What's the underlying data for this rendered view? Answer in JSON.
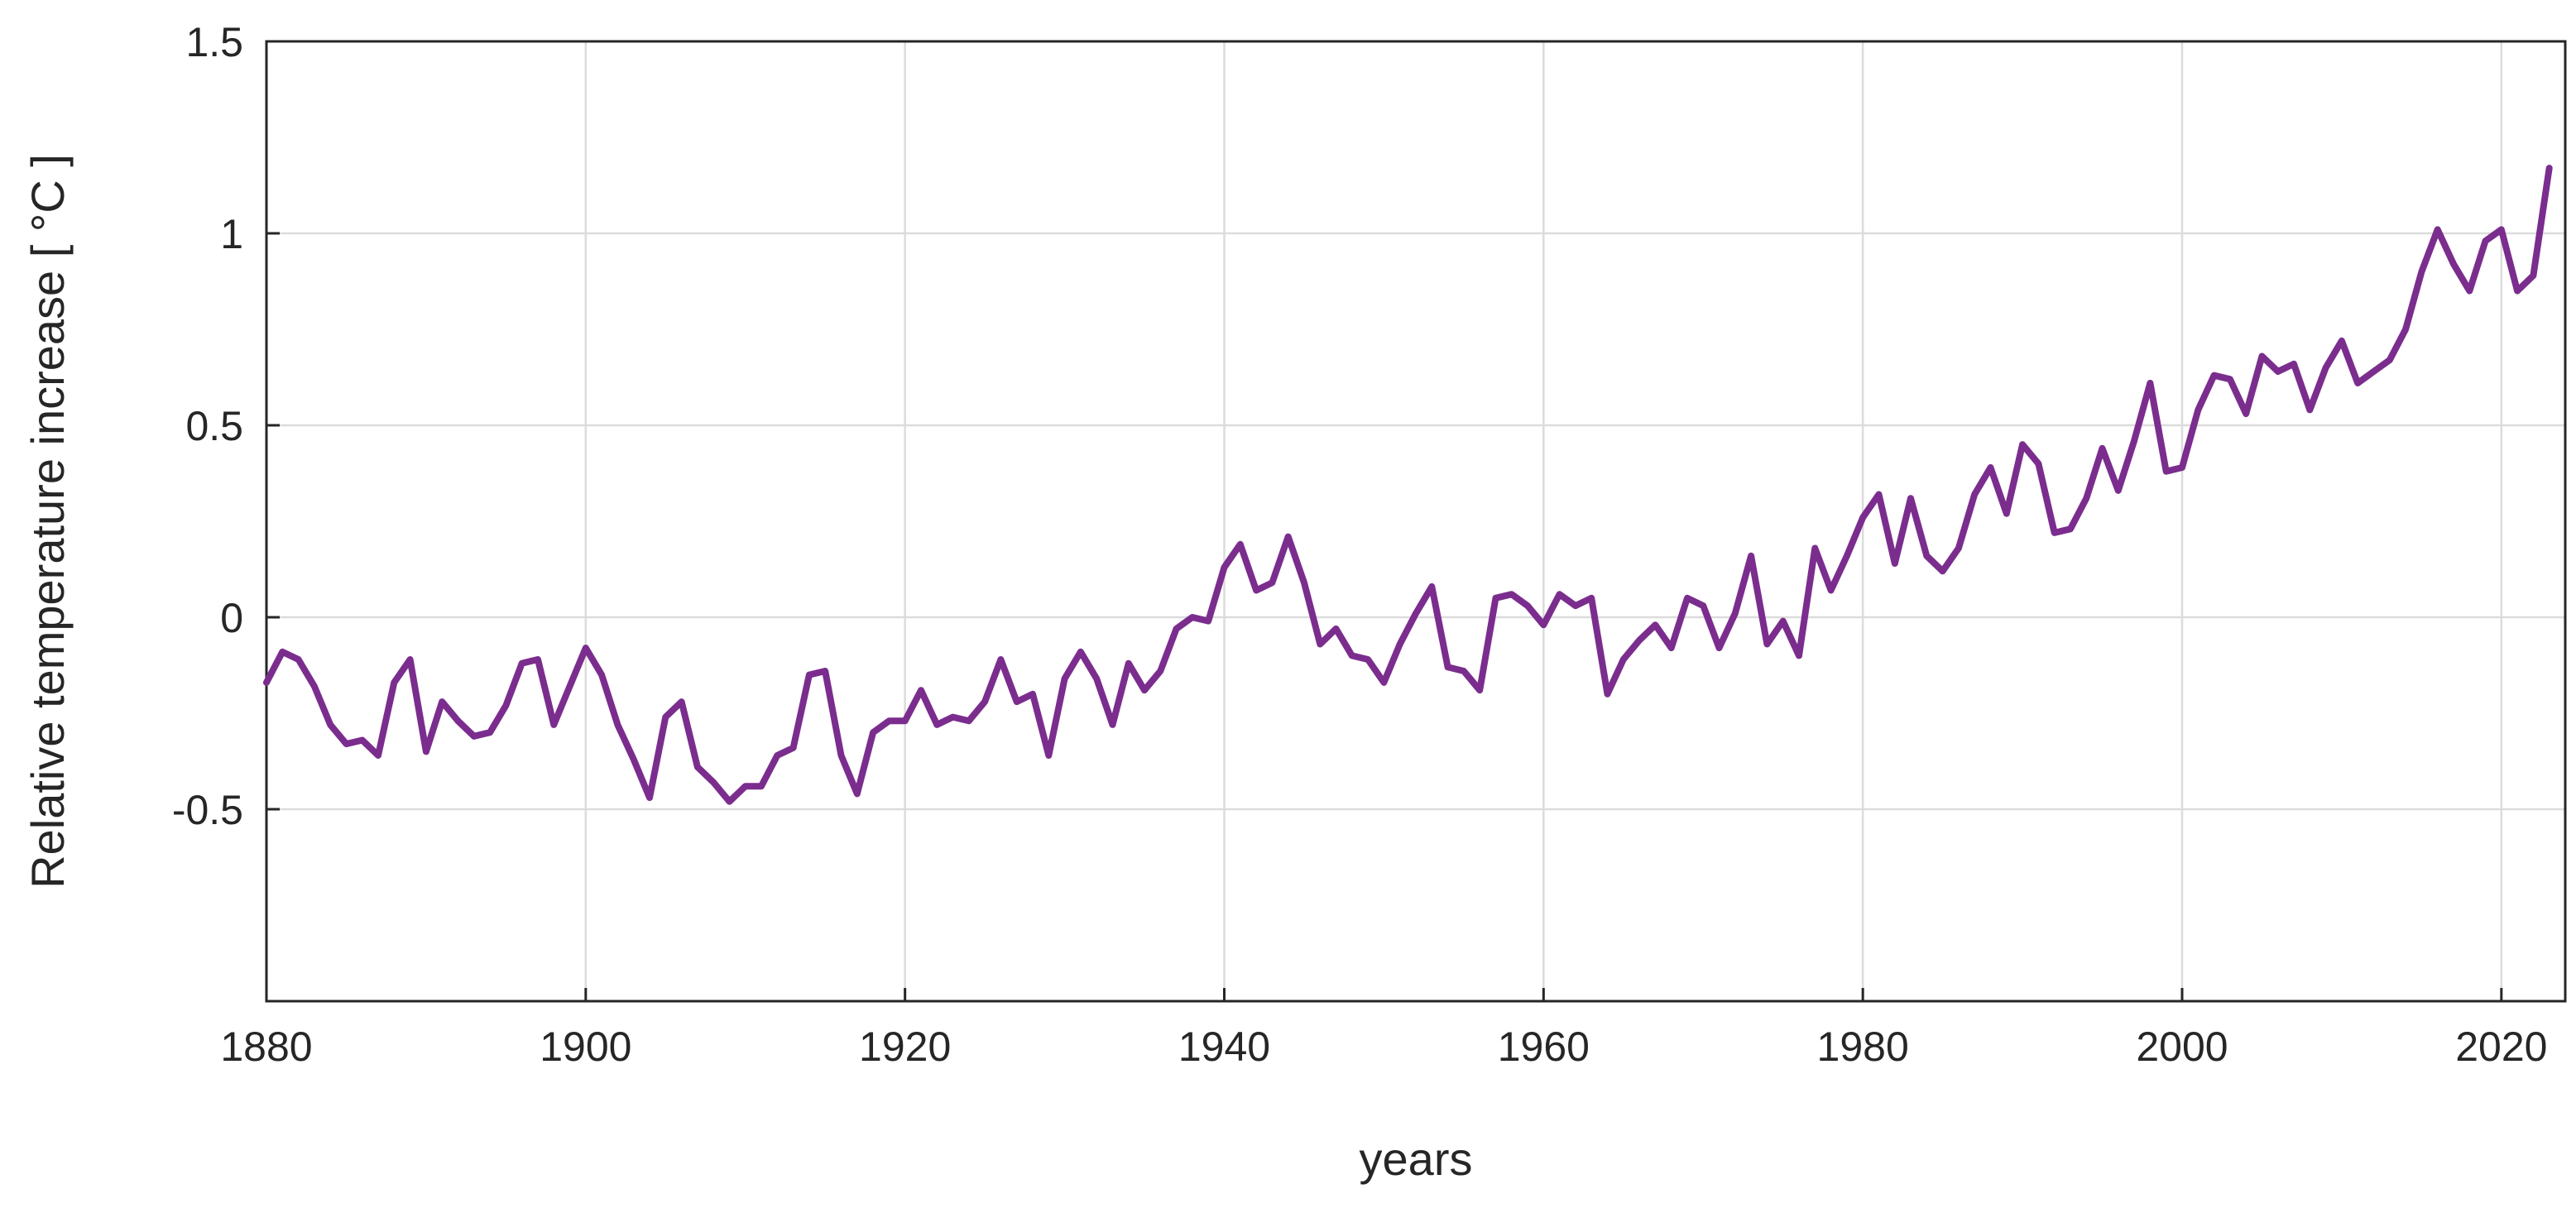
{
  "chart_data": {
    "type": "line",
    "title": "",
    "xlabel": "years",
    "ylabel": "Relative temperature increase [ °C ]",
    "xlim": [
      1880,
      2024
    ],
    "ylim": [
      -1,
      1.5
    ],
    "xticks": [
      1880,
      1900,
      1920,
      1940,
      1960,
      1980,
      2000,
      2020
    ],
    "xtick_labels": [
      "1880",
      "1900",
      "1920",
      "1940",
      "1960",
      "1980",
      "2000",
      "2020"
    ],
    "yticks": [
      1.5,
      1,
      0.5,
      0,
      -0.5
    ],
    "ytick_labels": [
      "1.5",
      "1",
      "0.5",
      "0",
      "-0.5"
    ],
    "grid": true,
    "legend": "none",
    "line_color": "#7b2d8e",
    "series": [
      {
        "x": [
          1880,
          1881,
          1882,
          1883,
          1884,
          1885,
          1886,
          1887,
          1888,
          1889,
          1890,
          1891,
          1892,
          1893,
          1894,
          1895,
          1896,
          1897,
          1898,
          1899,
          1900,
          1901,
          1902,
          1903,
          1904,
          1905,
          1906,
          1907,
          1908,
          1909,
          1910,
          1911,
          1912,
          1913,
          1914,
          1915,
          1916,
          1917,
          1918,
          1919,
          1920,
          1921,
          1922,
          1923,
          1924,
          1925,
          1926,
          1927,
          1928,
          1929,
          1930,
          1931,
          1932,
          1933,
          1934,
          1935,
          1936,
          1937,
          1938,
          1939,
          1940,
          1941,
          1942,
          1943,
          1944,
          1945,
          1946,
          1947,
          1948,
          1949,
          1950,
          1951,
          1952,
          1953,
          1954,
          1955,
          1956,
          1957,
          1958,
          1959,
          1960,
          1961,
          1962,
          1963,
          1964,
          1965,
          1966,
          1967,
          1968,
          1969,
          1970,
          1971,
          1972,
          1973,
          1974,
          1975,
          1976,
          1977,
          1978,
          1979,
          1980,
          1981,
          1982,
          1983,
          1984,
          1985,
          1986,
          1987,
          1988,
          1989,
          1990,
          1991,
          1992,
          1993,
          1994,
          1995,
          1996,
          1997,
          1998,
          1999,
          2000,
          2001,
          2002,
          2003,
          2004,
          2005,
          2006,
          2007,
          2008,
          2009,
          2010,
          2011,
          2012,
          2013,
          2014,
          2015,
          2016,
          2017,
          2018,
          2019,
          2020,
          2021,
          2022,
          2023
        ],
        "values": [
          -0.17,
          -0.09,
          -0.11,
          -0.18,
          -0.28,
          -0.33,
          -0.32,
          -0.36,
          -0.17,
          -0.11,
          -0.35,
          -0.22,
          -0.27,
          -0.31,
          -0.3,
          -0.23,
          -0.12,
          -0.11,
          -0.28,
          -0.18,
          -0.08,
          -0.15,
          -0.28,
          -0.37,
          -0.47,
          -0.26,
          -0.22,
          -0.39,
          -0.43,
          -0.48,
          -0.44,
          -0.44,
          -0.36,
          -0.34,
          -0.15,
          -0.14,
          -0.36,
          -0.46,
          -0.3,
          -0.27,
          -0.27,
          -0.19,
          -0.28,
          -0.26,
          -0.27,
          -0.22,
          -0.11,
          -0.22,
          -0.2,
          -0.36,
          -0.16,
          -0.09,
          -0.16,
          -0.28,
          -0.12,
          -0.19,
          -0.14,
          -0.03,
          0.0,
          -0.01,
          0.13,
          0.19,
          0.07,
          0.09,
          0.21,
          0.09,
          -0.07,
          -0.03,
          -0.1,
          -0.11,
          -0.17,
          -0.07,
          0.01,
          0.08,
          -0.13,
          -0.14,
          -0.19,
          0.05,
          0.06,
          0.03,
          -0.02,
          0.06,
          0.03,
          0.05,
          -0.2,
          -0.11,
          -0.06,
          -0.02,
          -0.08,
          0.05,
          0.03,
          -0.08,
          0.01,
          0.16,
          -0.07,
          -0.01,
          -0.1,
          0.18,
          0.07,
          0.16,
          0.26,
          0.32,
          0.14,
          0.31,
          0.16,
          0.12,
          0.18,
          0.32,
          0.39,
          0.27,
          0.45,
          0.4,
          0.22,
          0.23,
          0.31,
          0.44,
          0.33,
          0.46,
          0.61,
          0.38,
          0.39,
          0.54,
          0.63,
          0.62,
          0.53,
          0.68,
          0.64,
          0.66,
          0.54,
          0.65,
          0.72,
          0.61,
          0.64,
          0.67,
          0.75,
          0.9,
          1.01,
          0.92,
          0.85,
          0.98,
          1.01,
          0.85,
          0.89,
          1.17
        ]
      }
    ]
  }
}
